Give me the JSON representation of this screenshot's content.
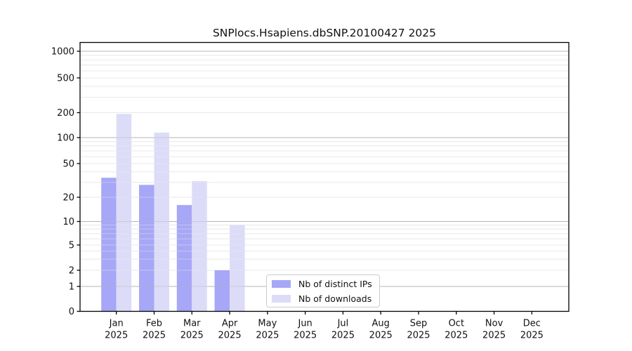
{
  "chart_data": {
    "type": "bar",
    "title": "SNPlocs.Hsapiens.dbSNP.20100427 2025",
    "categories": [
      "Jan",
      "Feb",
      "Mar",
      "Apr",
      "May",
      "Jun",
      "Jul",
      "Aug",
      "Sep",
      "Oct",
      "Nov",
      "Dec"
    ],
    "category_year": "2025",
    "series": [
      {
        "name": "Nb of distinct IPs",
        "color": "#a7a7f7",
        "values": [
          34,
          28,
          16,
          2,
          0,
          0,
          0,
          0,
          0,
          0,
          0,
          0
        ]
      },
      {
        "name": "Nb of downloads",
        "color": "#dcdcf9",
        "values": [
          193,
          115,
          31,
          9,
          0,
          0,
          0,
          0,
          0,
          0,
          0,
          0
        ]
      }
    ],
    "y_axis": {
      "scale": "log-like (0 baseline, log decades 1-1000)",
      "tick_labels": [
        0,
        1,
        2,
        5,
        10,
        20,
        50,
        100,
        200,
        500,
        1000
      ],
      "major_gridline_values": [
        1,
        10,
        100,
        1000
      ],
      "range": [
        0,
        1200
      ]
    },
    "x_axis": {
      "tick_count": 12
    },
    "grid": true,
    "legend_position": "inside lower-center",
    "colors": {
      "major_grid": "#b6b6b6",
      "minor_grid": "#e8e8e8",
      "spine": "#000000",
      "text": "#111111",
      "background": "#ffffff"
    }
  }
}
